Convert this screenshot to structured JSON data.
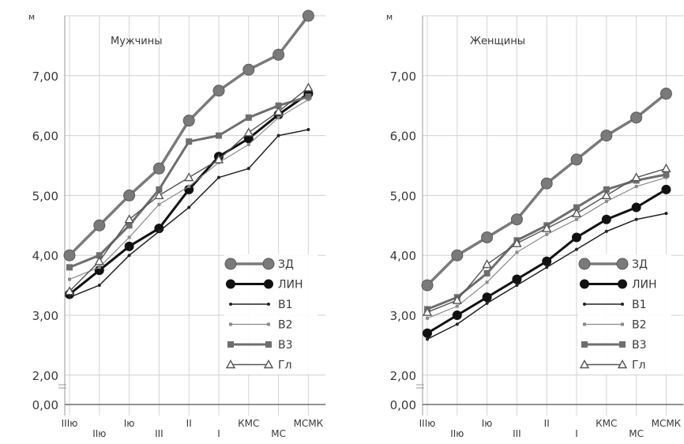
{
  "chart_data": [
    {
      "type": "line",
      "title": "Мужчины",
      "yunit": "м",
      "ylim": [
        0,
        8
      ],
      "y_ticks": [
        "2,00",
        "3,00",
        "4,00",
        "5,00",
        "6,00",
        "7,00"
      ],
      "y_zero": "0,00",
      "categories": [
        "IIIю",
        "IIю",
        "Iю",
        "III",
        "II",
        "I",
        "КМС",
        "МС",
        "МСМК"
      ],
      "grid": true,
      "legend_position": "bottom-right",
      "series": [
        {
          "name": "ЗД",
          "color": "#7a7a7a",
          "marker": "circle-large",
          "values": [
            4.0,
            4.5,
            5.0,
            5.45,
            6.25,
            6.75,
            7.1,
            7.35,
            8.0
          ]
        },
        {
          "name": "ЛИН",
          "color": "#111111",
          "marker": "circle",
          "values": [
            3.35,
            3.75,
            4.15,
            4.45,
            5.1,
            5.65,
            5.95,
            6.35,
            6.7
          ]
        },
        {
          "name": "B1",
          "color": "#222222",
          "marker": "dot",
          "values": [
            3.3,
            3.5,
            4.0,
            4.4,
            4.8,
            5.3,
            5.45,
            6.0,
            6.1
          ]
        },
        {
          "name": "B2",
          "color": "#8a8a8a",
          "marker": "small",
          "values": [
            3.6,
            3.8,
            4.3,
            4.85,
            5.15,
            5.55,
            5.85,
            6.3,
            6.6
          ]
        },
        {
          "name": "B3",
          "color": "#6e6e6e",
          "marker": "square",
          "values": [
            3.8,
            4.0,
            4.5,
            5.1,
            5.9,
            6.0,
            6.3,
            6.5,
            6.65
          ]
        },
        {
          "name": "Гл",
          "color": "#555555",
          "marker": "triangle",
          "values": [
            3.4,
            3.9,
            4.6,
            5.0,
            5.3,
            5.6,
            6.05,
            6.4,
            6.8
          ]
        }
      ]
    },
    {
      "type": "line",
      "title": "Женщины",
      "yunit": "м",
      "ylim": [
        0,
        8
      ],
      "y_ticks": [
        "2,00",
        "3,00",
        "4,00",
        "5,00",
        "6,00",
        "7,00"
      ],
      "y_zero": "0,00",
      "categories": [
        "IIIю",
        "IIю",
        "Iю",
        "III",
        "II",
        "I",
        "КМС",
        "МС",
        "МСМК"
      ],
      "grid": true,
      "legend_position": "bottom-right",
      "series": [
        {
          "name": "ЗД",
          "color": "#7a7a7a",
          "marker": "circle-large",
          "values": [
            3.5,
            4.0,
            4.3,
            4.6,
            5.2,
            5.6,
            6.0,
            6.3,
            6.7
          ]
        },
        {
          "name": "ЛИН",
          "color": "#111111",
          "marker": "circle",
          "values": [
            2.7,
            3.0,
            3.3,
            3.6,
            3.9,
            4.3,
            4.6,
            4.8,
            5.1
          ]
        },
        {
          "name": "B1",
          "color": "#222222",
          "marker": "dot",
          "values": [
            2.6,
            2.85,
            3.2,
            3.5,
            3.8,
            4.1,
            4.4,
            4.6,
            4.7
          ]
        },
        {
          "name": "B2",
          "color": "#8a8a8a",
          "marker": "small",
          "values": [
            2.95,
            3.15,
            3.55,
            4.05,
            4.35,
            4.6,
            4.9,
            5.15,
            5.3
          ]
        },
        {
          "name": "B3",
          "color": "#6e6e6e",
          "marker": "square",
          "values": [
            3.1,
            3.3,
            3.7,
            4.25,
            4.5,
            4.8,
            5.1,
            5.25,
            5.35
          ]
        },
        {
          "name": "Гл",
          "color": "#555555",
          "marker": "triangle",
          "values": [
            3.05,
            3.25,
            3.85,
            4.2,
            4.45,
            4.7,
            5.0,
            5.3,
            5.45
          ]
        }
      ]
    }
  ]
}
